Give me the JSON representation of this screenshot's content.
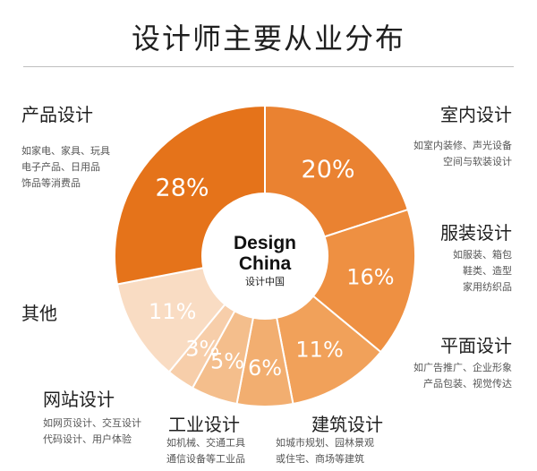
{
  "title": "设计师主要从业分布",
  "center_logo": {
    "line1": "Design",
    "line2": "China",
    "line3": "设计中国"
  },
  "palette": {
    "seg1": "#e5731a",
    "seg2": "#ea8231",
    "seg3": "#ee9042",
    "seg4": "#f1a15a",
    "seg5": "#f2ae70",
    "seg6": "#f4be8c",
    "seg7": "#f7ceaa",
    "seg8": "#f9dcc3"
  },
  "chart_data": {
    "type": "pie",
    "style": "donut",
    "unit": "%",
    "categories": [
      "产品设计",
      "室内设计",
      "服装设计",
      "平面设计",
      "建筑设计",
      "工业设计",
      "网站设计",
      "其他"
    ],
    "values": [
      28,
      20,
      16,
      11,
      6,
      5,
      3,
      11
    ],
    "value_labels": [
      "28%",
      "20%",
      "16%",
      "11%",
      "6%",
      "5%",
      "3%",
      "11%"
    ]
  },
  "descriptions": {
    "product": [
      "如家电、家具、玩具",
      "电子产品、日用品",
      "饰品等消费品"
    ],
    "interior": [
      "如室内装修、声光设备",
      "空间与软装设计"
    ],
    "fashion": [
      "如服装、箱包",
      "鞋类、造型",
      "家用纺织品"
    ],
    "graphic": [
      "如广告推广、企业形象",
      "产品包装、视觉传达"
    ],
    "architecture": [
      "如城市规划、园林景观",
      "或住宅、商场等建筑"
    ],
    "industrial": [
      "如机械、交通工具",
      "通信设备等工业品"
    ],
    "web": [
      "如网页设计、交互设计",
      "代码设计、用户体验"
    ]
  }
}
